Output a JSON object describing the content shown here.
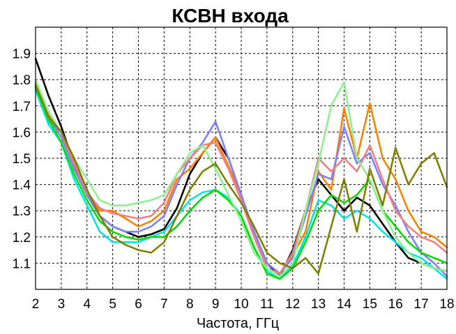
{
  "chart_data": {
    "type": "line",
    "title": "КСВН входа",
    "xlabel": "Частота, ГГц",
    "ylabel": "",
    "xlim": [
      2,
      18
    ],
    "ylim": [
      1.0,
      2.0
    ],
    "grid": true,
    "xticks": [
      "2",
      "3",
      "4",
      "5",
      "6",
      "7",
      "8",
      "9",
      "10",
      "11",
      "12",
      "13",
      "14",
      "15",
      "16",
      "17",
      "18"
    ],
    "yticks": [
      "1.1",
      "1.2",
      "1.3",
      "1.4",
      "1.5",
      "1.6",
      "1.7",
      "1.8",
      "1.9"
    ],
    "series": [
      {
        "color": "#000000",
        "x": [
          2,
          2.5,
          3,
          3.5,
          4,
          4.5,
          5,
          5.5,
          6,
          6.5,
          7,
          7.5,
          8,
          8.5,
          9,
          9.5,
          10,
          10.5,
          11,
          11.5,
          12,
          12.5,
          13,
          13.5,
          14,
          14.5,
          15,
          15.5,
          16,
          16.5,
          17,
          17.5,
          18
        ],
        "y": [
          1.88,
          1.74,
          1.62,
          1.48,
          1.36,
          1.28,
          1.24,
          1.22,
          1.2,
          1.21,
          1.23,
          1.31,
          1.44,
          1.52,
          1.58,
          1.5,
          1.36,
          1.22,
          1.1,
          1.05,
          1.15,
          1.3,
          1.42,
          1.36,
          1.3,
          1.35,
          1.32,
          1.25,
          1.18,
          1.12,
          1.1,
          1.08,
          1.07
        ]
      },
      {
        "color": "#ff8000",
        "x": [
          2,
          2.5,
          3,
          3.5,
          4,
          4.5,
          5,
          5.5,
          6,
          6.5,
          7,
          7.5,
          8,
          8.5,
          9,
          9.5,
          10,
          10.5,
          11,
          11.5,
          12,
          12.5,
          13,
          13.5,
          14,
          14.5,
          15,
          15.5,
          16,
          16.5,
          17,
          17.5,
          18
        ],
        "y": [
          1.78,
          1.64,
          1.6,
          1.46,
          1.36,
          1.3,
          1.3,
          1.27,
          1.24,
          1.26,
          1.3,
          1.42,
          1.46,
          1.52,
          1.58,
          1.47,
          1.36,
          1.22,
          1.1,
          1.06,
          1.13,
          1.22,
          1.45,
          1.38,
          1.69,
          1.5,
          1.71,
          1.5,
          1.42,
          1.3,
          1.22,
          1.2,
          1.16
        ]
      },
      {
        "color": "#8080ff",
        "x": [
          2,
          2.5,
          3,
          3.5,
          4,
          4.5,
          5,
          5.5,
          6,
          6.5,
          7,
          7.5,
          8,
          8.5,
          9,
          9.5,
          10,
          10.5,
          11,
          11.5,
          12,
          12.5,
          13,
          13.5,
          14,
          14.5,
          15,
          15.5,
          16,
          16.5,
          17,
          17.5,
          18
        ],
        "y": [
          1.77,
          1.66,
          1.58,
          1.46,
          1.36,
          1.28,
          1.24,
          1.22,
          1.22,
          1.24,
          1.28,
          1.4,
          1.5,
          1.56,
          1.64,
          1.5,
          1.36,
          1.22,
          1.1,
          1.06,
          1.12,
          1.28,
          1.44,
          1.42,
          1.62,
          1.48,
          1.52,
          1.4,
          1.32,
          1.22,
          1.14,
          1.1,
          1.05
        ]
      },
      {
        "color": "#f08080",
        "x": [
          2,
          2.5,
          3,
          3.5,
          4,
          4.5,
          5,
          5.5,
          6,
          6.5,
          7,
          7.5,
          8,
          8.5,
          9,
          9.5,
          10,
          10.5,
          11,
          11.5,
          12,
          12.5,
          13,
          13.5,
          14,
          14.5,
          15,
          15.5,
          16,
          16.5,
          17,
          17.5,
          18
        ],
        "y": [
          1.79,
          1.67,
          1.6,
          1.48,
          1.37,
          1.31,
          1.29,
          1.28,
          1.27,
          1.28,
          1.33,
          1.44,
          1.5,
          1.55,
          1.56,
          1.46,
          1.34,
          1.2,
          1.08,
          1.06,
          1.14,
          1.3,
          1.5,
          1.45,
          1.5,
          1.45,
          1.55,
          1.42,
          1.3,
          1.24,
          1.2,
          1.18,
          1.14
        ]
      },
      {
        "color": "#00e5e5",
        "x": [
          2,
          2.5,
          3,
          3.5,
          4,
          4.5,
          5,
          5.5,
          6,
          6.5,
          7,
          7.5,
          8,
          8.5,
          9,
          9.5,
          10,
          10.5,
          11,
          11.5,
          12,
          12.5,
          13,
          13.5,
          14,
          14.5,
          15,
          15.5,
          16,
          16.5,
          17,
          17.5,
          18
        ],
        "y": [
          1.76,
          1.63,
          1.56,
          1.42,
          1.32,
          1.22,
          1.18,
          1.18,
          1.18,
          1.2,
          1.22,
          1.28,
          1.34,
          1.37,
          1.38,
          1.35,
          1.28,
          1.16,
          1.07,
          1.04,
          1.09,
          1.2,
          1.34,
          1.32,
          1.27,
          1.3,
          1.27,
          1.22,
          1.18,
          1.14,
          1.12,
          1.08,
          1.04
        ]
      },
      {
        "color": "#00dd00",
        "x": [
          2,
          2.5,
          3,
          3.5,
          4,
          4.5,
          5,
          5.5,
          6,
          6.5,
          7,
          7.5,
          8,
          8.5,
          9,
          9.5,
          10,
          10.5,
          11,
          11.5,
          12,
          12.5,
          13,
          13.5,
          14,
          14.5,
          15,
          15.5,
          16,
          16.5,
          17,
          17.5,
          18
        ],
        "y": [
          1.77,
          1.65,
          1.56,
          1.44,
          1.34,
          1.26,
          1.22,
          1.2,
          1.19,
          1.2,
          1.2,
          1.24,
          1.3,
          1.35,
          1.38,
          1.34,
          1.28,
          1.16,
          1.06,
          1.04,
          1.08,
          1.18,
          1.3,
          1.36,
          1.33,
          1.36,
          1.42,
          1.3,
          1.24,
          1.18,
          1.14,
          1.12,
          1.1
        ]
      },
      {
        "color": "#90f090",
        "x": [
          2,
          2.5,
          3,
          3.5,
          4,
          4.5,
          5,
          5.5,
          6,
          6.5,
          7,
          7.5,
          8,
          8.5,
          9,
          9.5,
          10,
          10.5,
          11,
          11.5,
          12,
          12.5,
          13,
          13.5,
          14,
          14.5,
          15,
          15.5,
          16,
          16.5,
          17,
          17.5,
          18
        ],
        "y": [
          1.8,
          1.68,
          1.6,
          1.5,
          1.42,
          1.34,
          1.32,
          1.32,
          1.33,
          1.34,
          1.36,
          1.44,
          1.52,
          1.55,
          1.46,
          1.36,
          1.26,
          1.14,
          1.08,
          1.05,
          1.1,
          1.3,
          1.48,
          1.7,
          1.79,
          1.5,
          1.42,
          1.3,
          1.2,
          1.14,
          1.1,
          1.08,
          1.07
        ]
      },
      {
        "color": "#808000",
        "x": [
          2,
          2.5,
          3,
          3.5,
          4,
          4.5,
          5,
          5.5,
          6,
          6.5,
          7,
          7.5,
          8,
          8.5,
          9,
          9.5,
          10,
          10.5,
          11,
          11.5,
          12,
          12.5,
          13,
          13.5,
          14,
          14.5,
          15,
          15.5,
          16,
          16.5,
          17,
          17.5,
          18
        ],
        "y": [
          1.78,
          1.66,
          1.6,
          1.5,
          1.38,
          1.28,
          1.2,
          1.17,
          1.15,
          1.14,
          1.18,
          1.28,
          1.38,
          1.45,
          1.48,
          1.4,
          1.33,
          1.24,
          1.14,
          1.1,
          1.08,
          1.12,
          1.06,
          1.24,
          1.42,
          1.22,
          1.46,
          1.32,
          1.54,
          1.4,
          1.48,
          1.52,
          1.39
        ]
      }
    ]
  }
}
